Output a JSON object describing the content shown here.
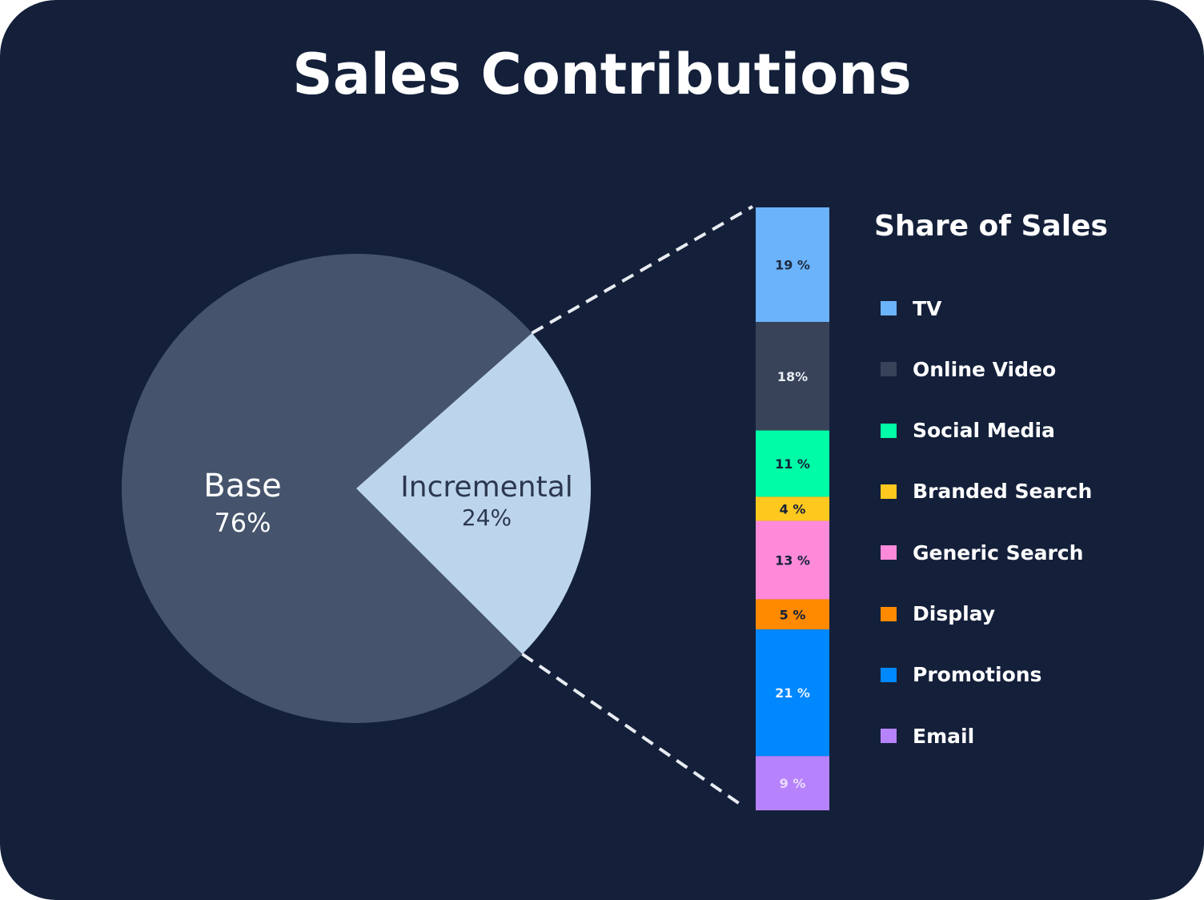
{
  "chart_data": {
    "type": "pie",
    "title": "Sales Contributions",
    "pie": {
      "slices": [
        {
          "label": "Base",
          "value": 76,
          "value_label": "76%",
          "color": "#45546c",
          "text_color": "#ffffff"
        },
        {
          "label": "Incremental",
          "value": 24,
          "value_label": "24%",
          "color": "#bcd5ed",
          "text_color": "#2c3850"
        }
      ]
    },
    "breakdown": {
      "type": "stacked-bar",
      "of": "Incremental",
      "legend_title": "Share of Sales",
      "legend_position": "right",
      "segments": [
        {
          "label": "TV",
          "value": 19,
          "value_label": "19 %",
          "color": "#6bb3fb",
          "text_color": "#1e2a3e"
        },
        {
          "label": "Online Video",
          "value": 18,
          "value_label": "18%",
          "color": "#38435a",
          "text_color": "#e8ecf2"
        },
        {
          "label": "Social Media",
          "value": 11,
          "value_label": "11 %",
          "color": "#00fca6",
          "text_color": "#14203a"
        },
        {
          "label": "Branded Search",
          "value": 4,
          "value_label": "4 %",
          "color": "#ffc81e",
          "text_color": "#14203a"
        },
        {
          "label": "Generic Search",
          "value": 13,
          "value_label": "13 %",
          "color": "#ff8ada",
          "text_color": "#14203a"
        },
        {
          "label": "Display",
          "value": 5,
          "value_label": "5 %",
          "color": "#ff8a00",
          "text_color": "#14203a"
        },
        {
          "label": "Promotions",
          "value": 21,
          "value_label": "21 %",
          "color": "#0088ff",
          "text_color": "#e8f2ff"
        },
        {
          "label": "Email",
          "value": 9,
          "value_label": "9 %",
          "color": "#b683fc",
          "text_color": "#eadcff"
        }
      ]
    }
  }
}
